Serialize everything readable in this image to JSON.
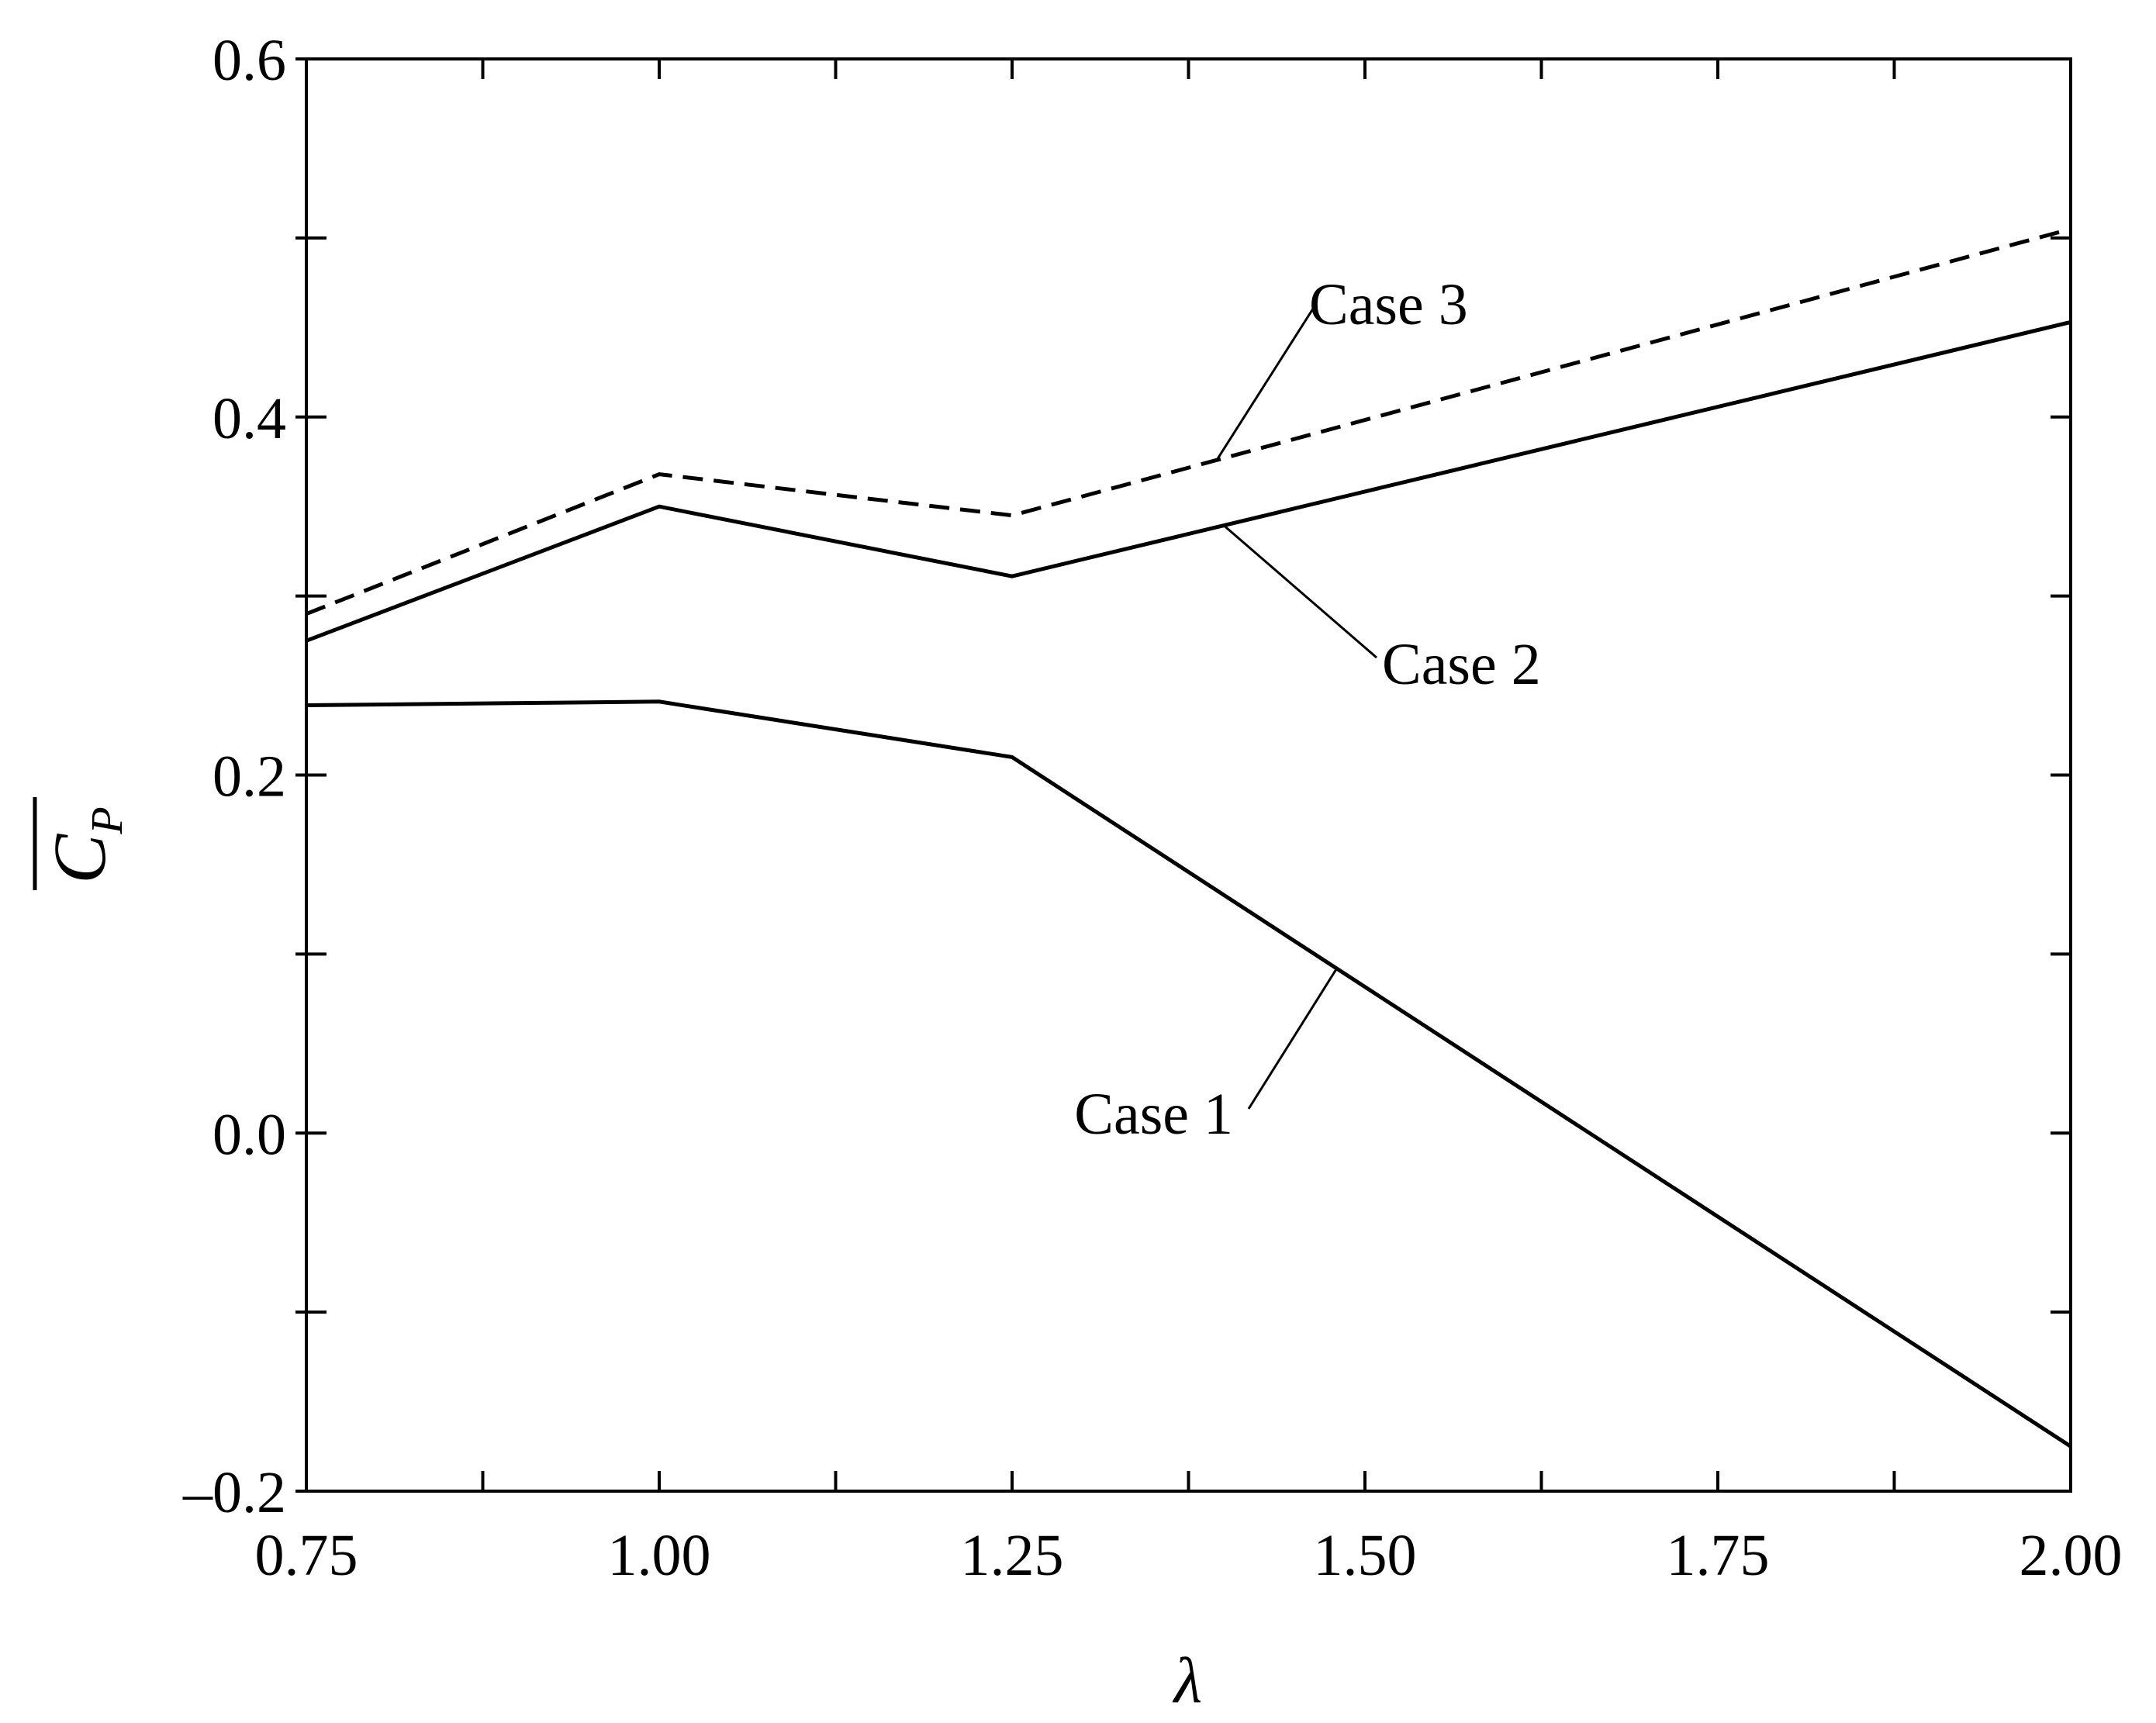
{
  "chart_data": {
    "type": "line",
    "xlabel": "λ",
    "ylabel": "C",
    "ylabel_subscript": "P",
    "xlim": [
      0.75,
      2.0
    ],
    "ylim": [
      -0.2,
      0.6
    ],
    "x_ticks": [
      "0.75",
      "1.00",
      "1.25",
      "1.50",
      "1.75",
      "2.00"
    ],
    "y_ticks": [
      "-0.2",
      "0.0",
      "0.2",
      "0.4",
      "0.6"
    ],
    "series": [
      {
        "name": "Case 1",
        "style": "solid",
        "x": [
          0.75,
          1.0,
          1.25,
          2.0
        ],
        "y": [
          0.239,
          0.241,
          0.21,
          -0.175
        ]
      },
      {
        "name": "Case 2",
        "style": "solid",
        "x": [
          0.75,
          1.0,
          1.25,
          2.0
        ],
        "y": [
          0.275,
          0.35,
          0.311,
          0.453
        ]
      },
      {
        "name": "Case 3",
        "style": "dashed",
        "x": [
          0.75,
          1.0,
          1.25,
          2.0
        ],
        "y": [
          0.29,
          0.368,
          0.345,
          0.505
        ]
      }
    ],
    "annotations": [
      {
        "text": "Case 3",
        "series": "Case 3"
      },
      {
        "text": "Case 2",
        "series": "Case 2"
      },
      {
        "text": "Case 1",
        "series": "Case 1"
      }
    ]
  }
}
